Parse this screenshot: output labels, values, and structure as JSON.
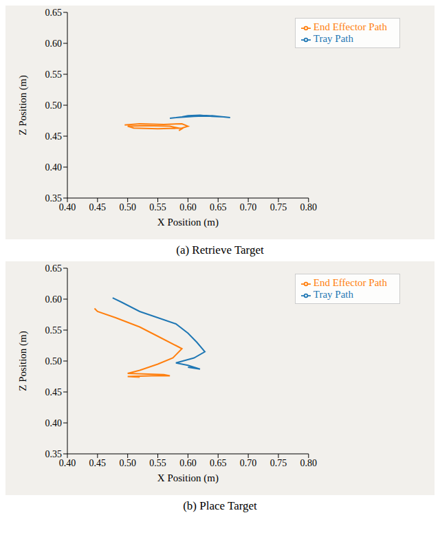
{
  "chart_data": [
    {
      "type": "line",
      "title": "(a) Retrieve Target",
      "x_label": "X Position (m)",
      "y_label": "Z Position (m)",
      "xlim": [
        0.4,
        0.8
      ],
      "ylim": [
        0.35,
        0.65
      ],
      "xticks": [
        {
          "value": 0.4,
          "label": "0.40"
        },
        {
          "value": 0.45,
          "label": "0.45"
        },
        {
          "value": 0.5,
          "label": "0.50"
        },
        {
          "value": 0.55,
          "label": "0.55"
        },
        {
          "value": 0.6,
          "label": "0.60"
        },
        {
          "value": 0.65,
          "label": "0.65"
        },
        {
          "value": 0.7,
          "label": "0.70"
        },
        {
          "value": 0.75,
          "label": "0.75"
        },
        {
          "value": 0.8,
          "label": "0.80"
        }
      ],
      "yticks": [
        {
          "value": 0.35,
          "label": "0.35"
        },
        {
          "value": 0.4,
          "label": "0.40"
        },
        {
          "value": 0.45,
          "label": "0.45"
        },
        {
          "value": 0.5,
          "label": "0.50"
        },
        {
          "value": 0.55,
          "label": "0.55"
        },
        {
          "value": 0.6,
          "label": "0.60"
        },
        {
          "value": 0.65,
          "label": "0.65"
        }
      ],
      "grid": false,
      "legend": "upper right",
      "series": [
        {
          "name": "Tray Path",
          "color": "#1f77b4",
          "x": [
            0.57,
            0.59,
            0.6,
            0.62,
            0.64,
            0.66,
            0.67,
            0.64,
            0.61,
            0.58
          ],
          "values": [
            0.479,
            0.481,
            0.483,
            0.484,
            0.482,
            0.481,
            0.48,
            0.483,
            0.482,
            0.48
          ]
        },
        {
          "name": "End Effector Path",
          "color": "#ff7f0e",
          "x": [
            0.495,
            0.52,
            0.56,
            0.59,
            0.6,
            0.59,
            0.55,
            0.51,
            0.5,
            0.53,
            0.57,
            0.59,
            0.585
          ],
          "values": [
            0.468,
            0.47,
            0.469,
            0.47,
            0.466,
            0.463,
            0.462,
            0.463,
            0.466,
            0.467,
            0.466,
            0.462,
            0.459
          ]
        }
      ]
    },
    {
      "type": "line",
      "title": "(b) Place Target",
      "x_label": "X Position (m)",
      "y_label": "Z Position (m)",
      "xlim": [
        0.4,
        0.8
      ],
      "ylim": [
        0.35,
        0.65
      ],
      "xticks": [
        {
          "value": 0.4,
          "label": "0.40"
        },
        {
          "value": 0.45,
          "label": "0.45"
        },
        {
          "value": 0.5,
          "label": "0.50"
        },
        {
          "value": 0.55,
          "label": "0.55"
        },
        {
          "value": 0.6,
          "label": "0.60"
        },
        {
          "value": 0.65,
          "label": "0.65"
        },
        {
          "value": 0.7,
          "label": "0.70"
        },
        {
          "value": 0.75,
          "label": "0.75"
        },
        {
          "value": 0.8,
          "label": "0.80"
        }
      ],
      "yticks": [
        {
          "value": 0.35,
          "label": "0.35"
        },
        {
          "value": 0.4,
          "label": "0.40"
        },
        {
          "value": 0.45,
          "label": "0.45"
        },
        {
          "value": 0.5,
          "label": "0.50"
        },
        {
          "value": 0.55,
          "label": "0.55"
        },
        {
          "value": 0.6,
          "label": "0.60"
        },
        {
          "value": 0.65,
          "label": "0.65"
        }
      ],
      "grid": false,
      "legend": "upper right",
      "series": [
        {
          "name": "Tray Path",
          "color": "#1f77b4",
          "x": [
            0.475,
            0.49,
            0.52,
            0.55,
            0.58,
            0.6,
            0.615,
            0.628,
            0.61,
            0.58,
            0.6,
            0.62,
            0.6
          ],
          "values": [
            0.602,
            0.595,
            0.58,
            0.57,
            0.56,
            0.545,
            0.53,
            0.515,
            0.505,
            0.497,
            0.493,
            0.487,
            0.49
          ]
        },
        {
          "name": "End Effector Path",
          "color": "#ff7f0e",
          "x": [
            0.445,
            0.45,
            0.48,
            0.52,
            0.55,
            0.58,
            0.59,
            0.575,
            0.55,
            0.52,
            0.5,
            0.56,
            0.57,
            0.54,
            0.5,
            0.52
          ],
          "values": [
            0.585,
            0.58,
            0.57,
            0.555,
            0.54,
            0.525,
            0.52,
            0.505,
            0.495,
            0.485,
            0.48,
            0.478,
            0.476,
            0.476,
            0.475,
            0.474
          ]
        }
      ]
    }
  ]
}
